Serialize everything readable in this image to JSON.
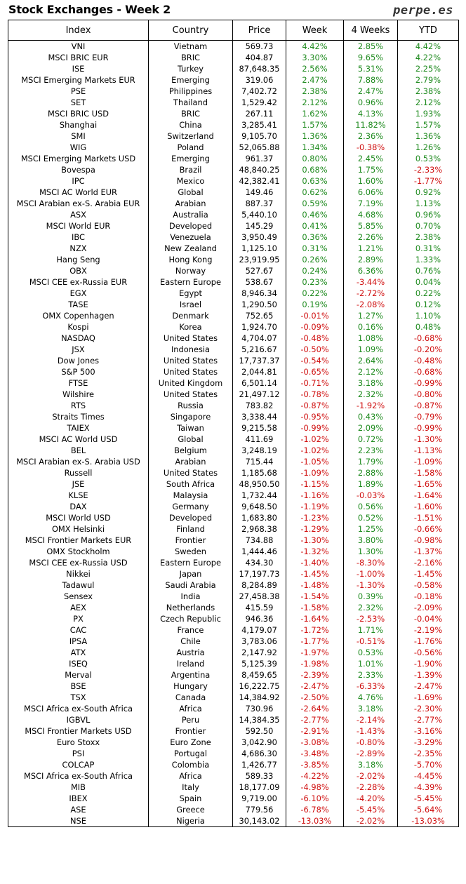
{
  "title": "Stock Exchanges - Week 2",
  "brand": "perpe.es",
  "colors": {
    "positive": "#1f8b1f",
    "negative": "#d01010"
  },
  "columns": [
    "Index",
    "Country",
    "Price",
    "Week",
    "4 Weeks",
    "YTD"
  ],
  "rows": [
    [
      "VNI",
      "Vietnam",
      "569.73",
      "4.42%",
      "2.85%",
      "4.42%"
    ],
    [
      "MSCI BRIC EUR",
      "BRIC",
      "404.87",
      "3.30%",
      "9.65%",
      "4.22%"
    ],
    [
      "ISE",
      "Turkey",
      "87,648.35",
      "2.56%",
      "5.31%",
      "2.25%"
    ],
    [
      "MSCI Emerging Markets EUR",
      "Emerging",
      "319.06",
      "2.47%",
      "7.88%",
      "2.79%"
    ],
    [
      "PSE",
      "Philippines",
      "7,402.72",
      "2.38%",
      "2.47%",
      "2.38%"
    ],
    [
      "SET",
      "Thailand",
      "1,529.42",
      "2.12%",
      "0.96%",
      "2.12%"
    ],
    [
      "MSCI BRIC USD",
      "BRIC",
      "267.11",
      "1.62%",
      "4.13%",
      "1.93%"
    ],
    [
      "Shanghai",
      "China",
      "3,285.41",
      "1.57%",
      "11.82%",
      "1.57%"
    ],
    [
      "SMI",
      "Switzerland",
      "9,105.70",
      "1.36%",
      "2.36%",
      "1.36%"
    ],
    [
      "WIG",
      "Poland",
      "52,065.88",
      "1.34%",
      "-0.38%",
      "1.26%"
    ],
    [
      "MSCI Emerging Markets USD",
      "Emerging",
      "961.37",
      "0.80%",
      "2.45%",
      "0.53%"
    ],
    [
      "Bovespa",
      "Brazil",
      "48,840.25",
      "0.68%",
      "1.75%",
      "-2.33%"
    ],
    [
      "IPC",
      "Mexico",
      "42,382.41",
      "0.63%",
      "1.60%",
      "-1.77%"
    ],
    [
      "MSCI AC World EUR",
      "Global",
      "149.46",
      "0.62%",
      "6.06%",
      "0.92%"
    ],
    [
      "MSCI Arabian ex-S. Arabia EUR",
      "Arabian",
      "887.37",
      "0.59%",
      "7.19%",
      "1.13%"
    ],
    [
      "ASX",
      "Australia",
      "5,440.10",
      "0.46%",
      "4.68%",
      "0.96%"
    ],
    [
      "MSCI World EUR",
      "Developed",
      "145.29",
      "0.41%",
      "5.85%",
      "0.70%"
    ],
    [
      "IBC",
      "Venezuela",
      "3,950.49",
      "0.36%",
      "2.26%",
      "2.38%"
    ],
    [
      "NZX",
      "New Zealand",
      "1,125.10",
      "0.31%",
      "1.21%",
      "0.31%"
    ],
    [
      "Hang Seng",
      "Hong Kong",
      "23,919.95",
      "0.26%",
      "2.89%",
      "1.33%"
    ],
    [
      "OBX",
      "Norway",
      "527.67",
      "0.24%",
      "6.36%",
      "0.76%"
    ],
    [
      "MSCI CEE ex-Russia EUR",
      "Eastern Europe",
      "538.67",
      "0.23%",
      "-3.44%",
      "0.04%"
    ],
    [
      "EGX",
      "Egypt",
      "8,946.34",
      "0.22%",
      "-2.72%",
      "0.22%"
    ],
    [
      "TASE",
      "Israel",
      "1,290.50",
      "0.19%",
      "-2.08%",
      "0.12%"
    ],
    [
      "OMX Copenhagen",
      "Denmark",
      "752.65",
      "-0.01%",
      "1.27%",
      "1.10%"
    ],
    [
      "Kospi",
      "Korea",
      "1,924.70",
      "-0.09%",
      "0.16%",
      "0.48%"
    ],
    [
      "NASDAQ",
      "United States",
      "4,704.07",
      "-0.48%",
      "1.08%",
      "-0.68%"
    ],
    [
      "JSX",
      "Indonesia",
      "5,216.67",
      "-0.50%",
      "1.09%",
      "-0.20%"
    ],
    [
      "Dow Jones",
      "United States",
      "17,737.37",
      "-0.54%",
      "2.64%",
      "-0.48%"
    ],
    [
      "S&P 500",
      "United States",
      "2,044.81",
      "-0.65%",
      "2.12%",
      "-0.68%"
    ],
    [
      "FTSE",
      "United Kingdom",
      "6,501.14",
      "-0.71%",
      "3.18%",
      "-0.99%"
    ],
    [
      "Wilshire",
      "United States",
      "21,497.12",
      "-0.78%",
      "2.32%",
      "-0.80%"
    ],
    [
      "RTS",
      "Russia",
      "783.82",
      "-0.87%",
      "-1.92%",
      "-0.87%"
    ],
    [
      "Straits Times",
      "Singapore",
      "3,338.44",
      "-0.95%",
      "0.43%",
      "-0.79%"
    ],
    [
      "TAIEX",
      "Taiwan",
      "9,215.58",
      "-0.99%",
      "2.09%",
      "-0.99%"
    ],
    [
      "MSCI AC World USD",
      "Global",
      "411.69",
      "-1.02%",
      "0.72%",
      "-1.30%"
    ],
    [
      "BEL",
      "Belgium",
      "3,248.19",
      "-1.02%",
      "2.23%",
      "-1.13%"
    ],
    [
      "MSCI Arabian ex-S. Arabia USD",
      "Arabian",
      "715.44",
      "-1.05%",
      "1.79%",
      "-1.09%"
    ],
    [
      "Russell",
      "United States",
      "1,185.68",
      "-1.09%",
      "2.88%",
      "-1.58%"
    ],
    [
      "JSE",
      "South Africa",
      "48,950.50",
      "-1.15%",
      "1.89%",
      "-1.65%"
    ],
    [
      "KLSE",
      "Malaysia",
      "1,732.44",
      "-1.16%",
      "-0.03%",
      "-1.64%"
    ],
    [
      "DAX",
      "Germany",
      "9,648.50",
      "-1.19%",
      "0.56%",
      "-1.60%"
    ],
    [
      "MSCI World USD",
      "Developed",
      "1,683.80",
      "-1.23%",
      "0.52%",
      "-1.51%"
    ],
    [
      "OMX Helsinki",
      "Finland",
      "2,968.38",
      "-1.29%",
      "1.25%",
      "-0.66%"
    ],
    [
      "MSCI Frontier Markets EUR",
      "Frontier",
      "734.88",
      "-1.30%",
      "3.80%",
      "-0.98%"
    ],
    [
      "OMX Stockholm",
      "Sweden",
      "1,444.46",
      "-1.32%",
      "1.30%",
      "-1.37%"
    ],
    [
      "MSCI CEE ex-Russia USD",
      "Eastern Europe",
      "434.30",
      "-1.40%",
      "-8.30%",
      "-2.16%"
    ],
    [
      "Nikkei",
      "Japan",
      "17,197.73",
      "-1.45%",
      "-1.00%",
      "-1.45%"
    ],
    [
      "Tadawul",
      "Saudi Arabia",
      "8,284.89",
      "-1.48%",
      "-1.30%",
      "-0.58%"
    ],
    [
      "Sensex",
      "India",
      "27,458.38",
      "-1.54%",
      "0.39%",
      "-0.18%"
    ],
    [
      "AEX",
      "Netherlands",
      "415.59",
      "-1.58%",
      "2.32%",
      "-2.09%"
    ],
    [
      "PX",
      "Czech Republic",
      "946.36",
      "-1.64%",
      "-2.53%",
      "-0.04%"
    ],
    [
      "CAC",
      "France",
      "4,179.07",
      "-1.72%",
      "1.71%",
      "-2.19%"
    ],
    [
      "IPSA",
      "Chile",
      "3,783.06",
      "-1.77%",
      "-0.51%",
      "-1.76%"
    ],
    [
      "ATX",
      "Austria",
      "2,147.92",
      "-1.97%",
      "0.53%",
      "-0.56%"
    ],
    [
      "ISEQ",
      "Ireland",
      "5,125.39",
      "-1.98%",
      "1.01%",
      "-1.90%"
    ],
    [
      "Merval",
      "Argentina",
      "8,459.65",
      "-2.39%",
      "2.33%",
      "-1.39%"
    ],
    [
      "BSE",
      "Hungary",
      "16,222.75",
      "-2.47%",
      "-6.33%",
      "-2.47%"
    ],
    [
      "TSX",
      "Canada",
      "14,384.92",
      "-2.50%",
      "4.76%",
      "-1.69%"
    ],
    [
      "MSCI Africa ex-South Africa",
      "Africa",
      "730.96",
      "-2.64%",
      "3.18%",
      "-2.30%"
    ],
    [
      "IGBVL",
      "Peru",
      "14,384.35",
      "-2.77%",
      "-2.14%",
      "-2.77%"
    ],
    [
      "MSCI Frontier Markets USD",
      "Frontier",
      "592.50",
      "-2.91%",
      "-1.43%",
      "-3.16%"
    ],
    [
      "Euro Stoxx",
      "Euro Zone",
      "3,042.90",
      "-3.08%",
      "-0.80%",
      "-3.29%"
    ],
    [
      "PSI",
      "Portugal",
      "4,686.30",
      "-3.48%",
      "-2.89%",
      "-2.35%"
    ],
    [
      "COLCAP",
      "Colombia",
      "1,426.77",
      "-3.85%",
      "3.18%",
      "-5.70%"
    ],
    [
      "MSCI Africa ex-South Africa",
      "Africa",
      "589.33",
      "-4.22%",
      "-2.02%",
      "-4.45%"
    ],
    [
      "MIB",
      "Italy",
      "18,177.09",
      "-4.98%",
      "-2.28%",
      "-4.39%"
    ],
    [
      "IBEX",
      "Spain",
      "9,719.00",
      "-6.10%",
      "-4.20%",
      "-5.45%"
    ],
    [
      "ASE",
      "Greece",
      "779.56",
      "-6.78%",
      "-5.45%",
      "-5.64%"
    ],
    [
      "NSE",
      "Nigeria",
      "30,143.02",
      "-13.03%",
      "-2.02%",
      "-13.03%"
    ]
  ]
}
